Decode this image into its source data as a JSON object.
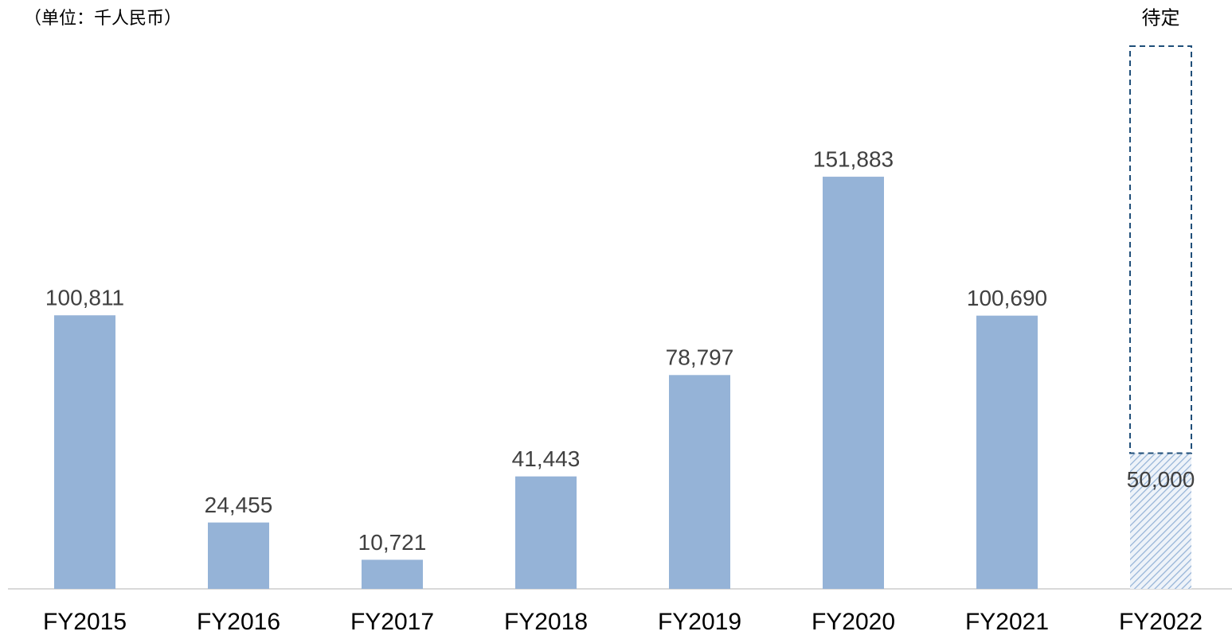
{
  "chart_data": {
    "type": "bar",
    "subtitle": "（单位：千人民币）",
    "categories": [
      "FY2015",
      "FY2016",
      "FY2017",
      "FY2018",
      "FY2019",
      "FY2020",
      "FY2021",
      "FY2022"
    ],
    "values": [
      100811,
      24455,
      10721,
      41443,
      78797,
      151883,
      100690,
      50000
    ],
    "value_labels": [
      "100,811",
      "24,455",
      "10,721",
      "41,443",
      "78,797",
      "151,883",
      "100,690",
      "50,000"
    ],
    "hatched": [
      false,
      false,
      false,
      false,
      false,
      false,
      false,
      true
    ],
    "color": "#95b3d7",
    "pending": {
      "label": "待定",
      "values": [
        null,
        null,
        null,
        null,
        null,
        null,
        null,
        150000
      ],
      "color": "#1f4e79"
    },
    "ylim": [
      0,
      200000
    ]
  }
}
